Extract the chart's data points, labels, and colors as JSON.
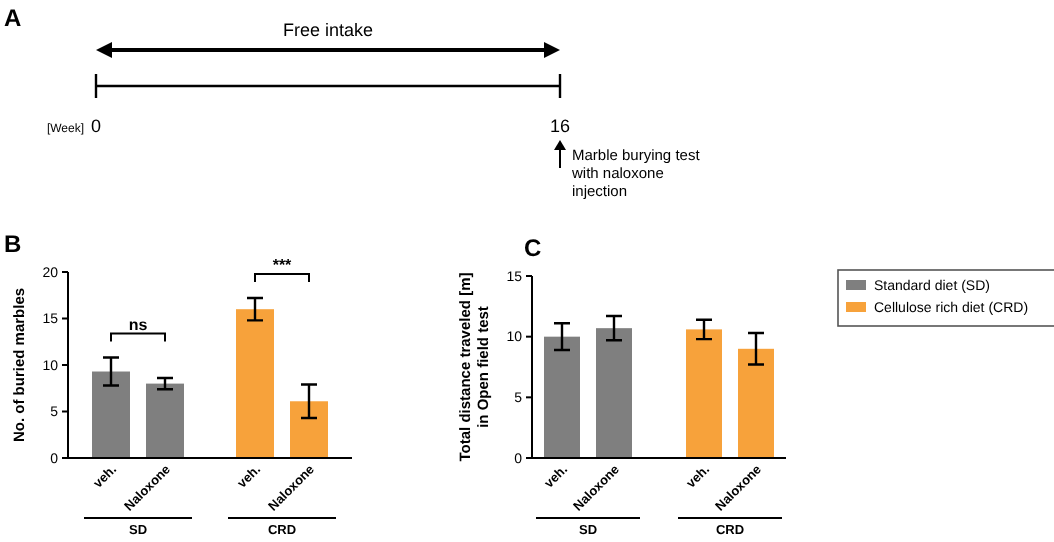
{
  "chart_data": [
    {
      "type": "other",
      "title": "A",
      "annotations": [
        "Free intake",
        "[Week]",
        "0",
        "16",
        "Marble burying test with naloxone injection"
      ]
    },
    {
      "type": "bar",
      "title": "B",
      "ylabel": "No. of buried marbles",
      "categories": [
        "veh.",
        "Naloxone",
        "veh.",
        "Naloxone"
      ],
      "ylim": [
        0,
        20
      ],
      "yticks": [
        0,
        5,
        10,
        15,
        20
      ],
      "legend": false,
      "series": [
        {
          "color": "#7f7f7f",
          "values": [
            9.3,
            8.0,
            null,
            null
          ],
          "errors": [
            1.5,
            0.6,
            null,
            null
          ]
        },
        {
          "color": "#f7a23b",
          "values": [
            null,
            null,
            16.0,
            6.1
          ],
          "errors": [
            null,
            null,
            1.2,
            1.8
          ]
        }
      ],
      "annotations": [
        "ns",
        "***",
        "SD",
        "CRD"
      ]
    },
    {
      "type": "bar",
      "title": "C",
      "ylabel": "Total distance traveled [m] in Open field test",
      "categories": [
        "veh.",
        "Naloxone",
        "veh.",
        "Naloxone"
      ],
      "ylim": [
        0,
        15
      ],
      "yticks": [
        0,
        5,
        10,
        15
      ],
      "legend": "right",
      "series": [
        {
          "name": "Standard diet (SD)",
          "color": "#7f7f7f",
          "values": [
            10.0,
            10.7,
            null,
            null
          ],
          "errors": [
            1.1,
            1.0,
            null,
            null
          ]
        },
        {
          "name": "Cellulose rich diet (CRD)",
          "color": "#f7a23b",
          "values": [
            null,
            null,
            10.6,
            9.0
          ],
          "errors": [
            null,
            null,
            0.8,
            1.3
          ]
        }
      ],
      "annotations": [
        "SD",
        "CRD"
      ]
    }
  ]
}
